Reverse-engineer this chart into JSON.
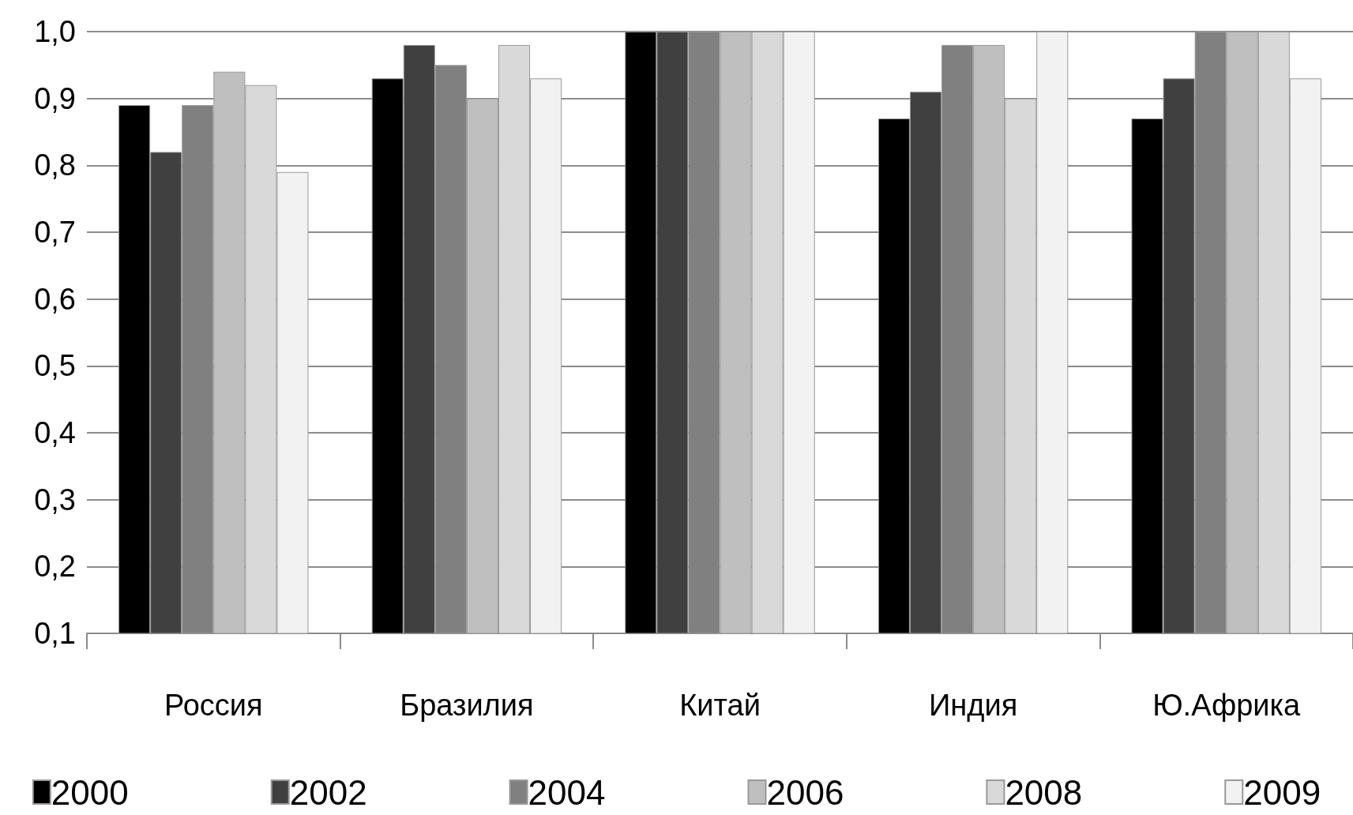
{
  "chart_data": {
    "type": "bar",
    "categories": [
      "Россия",
      "Бразилия",
      "Китай",
      "Индия",
      "Ю.Африка"
    ],
    "series": [
      {
        "name": "2000",
        "color": "#000000",
        "values": [
          0.89,
          0.93,
          1.0,
          0.87,
          0.87
        ]
      },
      {
        "name": "2002",
        "color": "#404040",
        "values": [
          0.82,
          0.98,
          1.0,
          0.91,
          0.93
        ]
      },
      {
        "name": "2004",
        "color": "#808080",
        "values": [
          0.89,
          0.95,
          1.0,
          0.98,
          1.0
        ]
      },
      {
        "name": "2006",
        "color": "#bfbfbf",
        "values": [
          0.94,
          0.9,
          1.0,
          0.98,
          1.0
        ]
      },
      {
        "name": "2008",
        "color": "#d9d9d9",
        "values": [
          0.92,
          0.98,
          1.0,
          0.9,
          1.0
        ]
      },
      {
        "name": "2009",
        "color": "#f2f2f2",
        "values": [
          0.79,
          0.93,
          1.0,
          1.0,
          0.93
        ]
      }
    ],
    "ylim": [
      0.1,
      1.0
    ],
    "yticks": [
      {
        "value": 0.1,
        "label": "0,1"
      },
      {
        "value": 0.2,
        "label": "0,2"
      },
      {
        "value": 0.3,
        "label": "0,3"
      },
      {
        "value": 0.4,
        "label": "0,4"
      },
      {
        "value": 0.5,
        "label": "0,5"
      },
      {
        "value": 0.6,
        "label": "0,6"
      },
      {
        "value": 0.7,
        "label": "0,7"
      },
      {
        "value": 0.8,
        "label": "0,8"
      },
      {
        "value": 0.9,
        "label": "0,9"
      },
      {
        "value": 1.0,
        "label": "1,0"
      }
    ],
    "grid": "y",
    "legend": "bottom"
  }
}
